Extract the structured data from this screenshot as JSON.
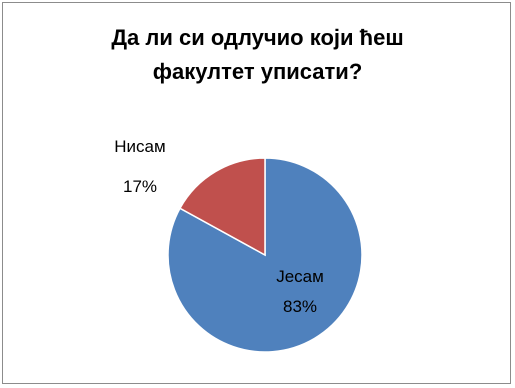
{
  "chart_data": {
    "type": "pie",
    "title_lines": [
      "Да ли си одлучио који ћеш",
      "факултет уписати?"
    ],
    "slices": [
      {
        "label": "Јесам",
        "value": 83,
        "value_label": "83%",
        "color": "#4f81bd"
      },
      {
        "label": "Нисам",
        "value": 17,
        "value_label": "17%",
        "color": "#c0504d"
      }
    ],
    "start_angle_deg": 0,
    "direction": "clockwise",
    "legend": "none"
  }
}
